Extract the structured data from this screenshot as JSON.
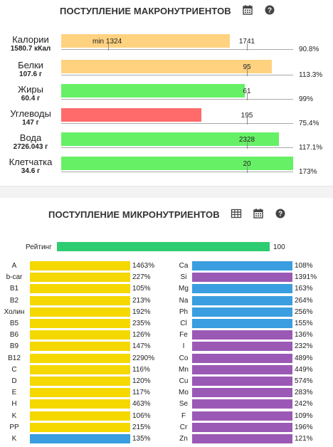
{
  "macro": {
    "title": "ПОСТУПЛЕНИЕ МАКРОНУТРИЕНТОВ",
    "icons": [
      "calendar-icon",
      "help-icon"
    ],
    "min_label": "min 1324",
    "rows": [
      {
        "name": "Калории",
        "amount": "1580.7 кКал",
        "norm": "1741",
        "pct": "90.8%",
        "fill": 0.908,
        "color": "#ffd280"
      },
      {
        "name": "Белки",
        "amount": "107.6 г",
        "norm": "95",
        "pct": "113.3%",
        "fill": 1.133,
        "color": "#ffd280"
      },
      {
        "name": "Жиры",
        "amount": "60.4 г",
        "norm": "61",
        "pct": "99%",
        "fill": 0.99,
        "color": "#66f066"
      },
      {
        "name": "Углеводы",
        "amount": "147 г",
        "norm": "195",
        "pct": "75.4%",
        "fill": 0.754,
        "color": "#ff6b6b"
      },
      {
        "name": "Вода",
        "amount": "2726.043 г",
        "norm": "2328",
        "pct": "117.1%",
        "fill": 1.171,
        "color": "#66f066"
      },
      {
        "name": "Клетчатка",
        "amount": "34.6 г",
        "norm": "20",
        "pct": "173%",
        "fill": 1.73,
        "color": "#66f066"
      }
    ]
  },
  "micro": {
    "title": "ПОСТУПЛЕНИЕ МИКРОНУТРИЕНТОВ",
    "icons": [
      "table-icon",
      "calendar-icon",
      "help-icon"
    ],
    "rating": {
      "label": "Рейтинг",
      "value": "100"
    },
    "colors": {
      "vitamin": "#f4d800",
      "mineral": "#9b59b6",
      "blue": "#3a9ee0"
    },
    "left": [
      {
        "name": "A",
        "pct": "1463%",
        "color": "#f4d800"
      },
      {
        "name": "b-car",
        "pct": "227%",
        "color": "#f4d800"
      },
      {
        "name": "B1",
        "pct": "105%",
        "color": "#f4d800"
      },
      {
        "name": "B2",
        "pct": "213%",
        "color": "#f4d800"
      },
      {
        "name": "Холин",
        "pct": "192%",
        "color": "#f4d800"
      },
      {
        "name": "B5",
        "pct": "235%",
        "color": "#f4d800"
      },
      {
        "name": "B6",
        "pct": "126%",
        "color": "#f4d800"
      },
      {
        "name": "B9",
        "pct": "147%",
        "color": "#f4d800"
      },
      {
        "name": "B12",
        "pct": "2290%",
        "color": "#f4d800"
      },
      {
        "name": "C",
        "pct": "116%",
        "color": "#f4d800"
      },
      {
        "name": "D",
        "pct": "120%",
        "color": "#f4d800"
      },
      {
        "name": "E",
        "pct": "117%",
        "color": "#f4d800"
      },
      {
        "name": "H",
        "pct": "463%",
        "color": "#f4d800"
      },
      {
        "name": "K",
        "pct": "106%",
        "color": "#f4d800"
      },
      {
        "name": "PP",
        "pct": "215%",
        "color": "#f4d800"
      },
      {
        "name": "K",
        "pct": "135%",
        "color": "#3a9ee0"
      }
    ],
    "right": [
      {
        "name": "Ca",
        "pct": "108%",
        "color": "#3a9ee0"
      },
      {
        "name": "Si",
        "pct": "1391%",
        "color": "#9b59b6"
      },
      {
        "name": "Mg",
        "pct": "163%",
        "color": "#3a9ee0"
      },
      {
        "name": "Na",
        "pct": "264%",
        "color": "#3a9ee0"
      },
      {
        "name": "Ph",
        "pct": "256%",
        "color": "#3a9ee0"
      },
      {
        "name": "Cl",
        "pct": "155%",
        "color": "#3a9ee0"
      },
      {
        "name": "Fe",
        "pct": "136%",
        "color": "#9b59b6"
      },
      {
        "name": "I",
        "pct": "232%",
        "color": "#9b59b6"
      },
      {
        "name": "Co",
        "pct": "489%",
        "color": "#9b59b6"
      },
      {
        "name": "Mn",
        "pct": "449%",
        "color": "#9b59b6"
      },
      {
        "name": "Cu",
        "pct": "574%",
        "color": "#9b59b6"
      },
      {
        "name": "Mo",
        "pct": "283%",
        "color": "#9b59b6"
      },
      {
        "name": "Se",
        "pct": "242%",
        "color": "#9b59b6"
      },
      {
        "name": "F",
        "pct": "109%",
        "color": "#9b59b6"
      },
      {
        "name": "Cr",
        "pct": "196%",
        "color": "#9b59b6"
      },
      {
        "name": "Zn",
        "pct": "121%",
        "color": "#9b59b6"
      }
    ]
  }
}
